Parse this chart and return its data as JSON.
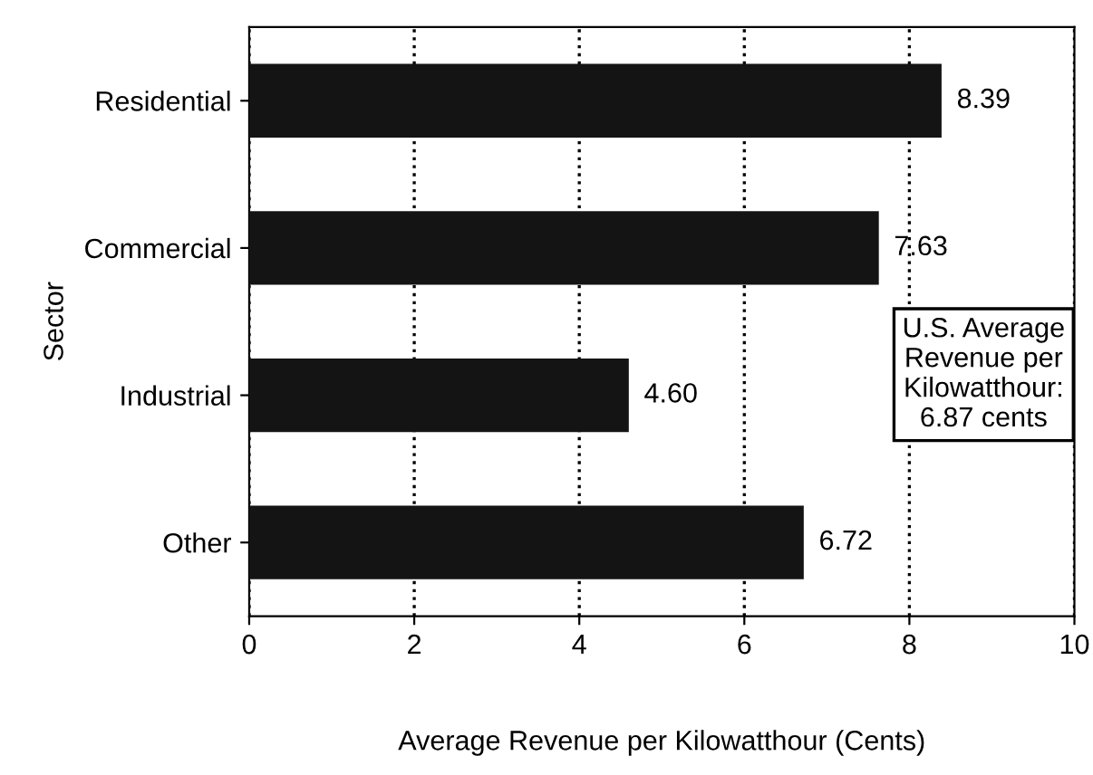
{
  "chart_data": {
    "type": "bar",
    "orientation": "horizontal",
    "categories": [
      "Residential",
      "Commercial",
      "Industrial",
      "Other"
    ],
    "values": [
      8.39,
      7.63,
      4.6,
      6.72
    ],
    "value_labels": [
      "8.39",
      "7.63",
      "4.60",
      "6.72"
    ],
    "color": "#141414",
    "xlim": [
      0,
      10
    ],
    "xticks": [
      0,
      2,
      4,
      6,
      8,
      10
    ],
    "xlabel": "Average Revenue per Kilowatthour (Cents)",
    "ylabel": "Sector",
    "grid": "x",
    "line_style": "dotted",
    "annotations": [
      "U.S. Average\nRevenue per\nKilowatthour:\n6.87 cents"
    ]
  }
}
